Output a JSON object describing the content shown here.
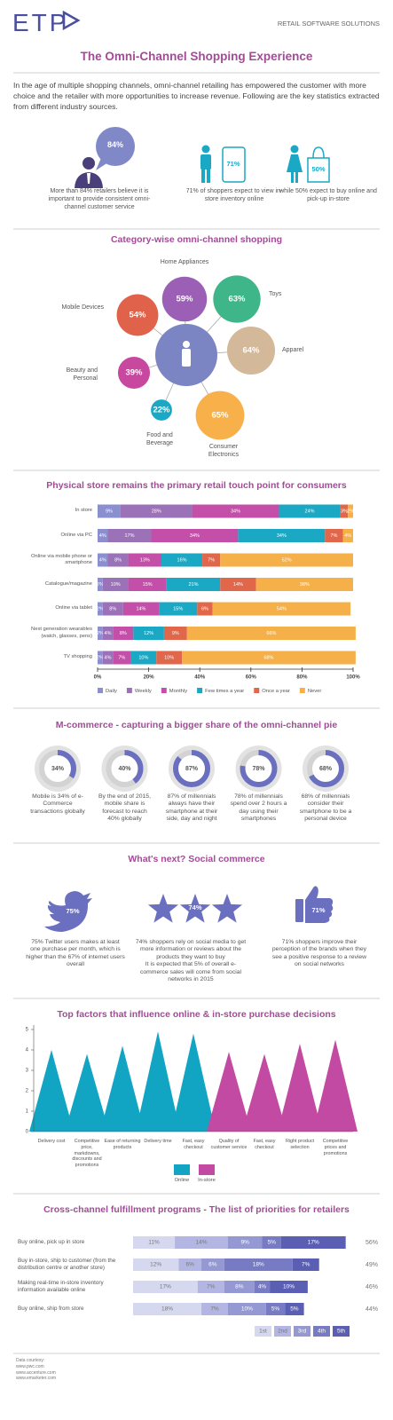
{
  "header": {
    "logo": "ETP",
    "tagline": "RETAIL SOFTWARE SOLUTIONS"
  },
  "title": "The Omni-Channel Shopping Experience",
  "intro": "In the age of multiple shopping channels, omni-channel retailing has empowered the customer with more choice and the retailer with more opportunities to increase revenue. Following are the key statistics extracted from different industry sources.",
  "stats": [
    {
      "value": "84%",
      "caption": "More than 84% retailers believe it is important to provide consistent omni-channel customer service"
    },
    {
      "value": "71%",
      "caption": "71% of shoppers expect to view in-store inventory online"
    },
    {
      "value": "50%",
      "caption": "while 50% expect to buy online and pick-up in-store"
    }
  ],
  "social": {
    "title": "What's next? Social commerce",
    "items": [
      {
        "value": "75%",
        "caption": "75% Twitter users makes at least one purchase per month, which is higher than the 67% of internet users overall"
      },
      {
        "value": "74%",
        "caption": "74% shoppers rely on social media to get more information or reviews about the products they want to buy\nIt is expected that 5% of overall e-commerce sales will come from social networks in 2015"
      },
      {
        "value": "71%",
        "caption": "71% shoppers improve their perception of the brands when they see a positive response to a review on social networks"
      }
    ]
  },
  "footer": {
    "label": "Data courtesy:",
    "sources": [
      "www.pwc.com",
      "www.accenture.com",
      "www.emarketer.com"
    ]
  },
  "chart_data": [
    {
      "type": "bubble",
      "title": "Category-wise omni-channel shopping",
      "categories": [
        "Home Appliances",
        "Toys",
        "Apparel",
        "Consumer Electronics",
        "Food and Beverage",
        "Beauty and Personal",
        "Mobile Devices"
      ],
      "values": [
        59,
        63,
        64,
        65,
        22,
        39,
        54
      ],
      "value_labels": [
        "59%",
        "63%",
        "64%",
        "65%",
        "22%",
        "39%",
        "54%"
      ],
      "colors": [
        "#9b5fb5",
        "#3fb58a",
        "#d4b89a",
        "#f7b04a",
        "#1aa8c4",
        "#c8479f",
        "#e0624a"
      ],
      "center_color": "#7b85c4"
    },
    {
      "type": "stacked_bar",
      "title": "Physical store remains the primary retail touch point for consumers",
      "categories": [
        "In store",
        "Online via PC",
        "Online via mobile phone or smartphone",
        "Catalogue/magazine",
        "Online via tablet",
        "Next generation wearables (watch, glasses, pens)",
        "TV shopping"
      ],
      "series": [
        {
          "name": "Daily",
          "color": "#8b8fd0",
          "values": [
            9,
            4,
            4,
            2,
            2,
            2,
            2
          ],
          "value_labels": [
            "9%",
            "4%",
            "4%",
            "2%",
            "2%",
            "2%",
            "2%"
          ]
        },
        {
          "name": "Weekly",
          "color": "#9b72b8",
          "values": [
            28,
            17,
            8,
            10,
            8,
            4,
            4
          ],
          "value_labels": [
            "28%",
            "17%",
            "8%",
            "10%",
            "8%",
            "4%",
            "4%"
          ]
        },
        {
          "name": "Monthly",
          "color": "#c44fa8",
          "values": [
            34,
            34,
            13,
            15,
            14,
            8,
            7
          ],
          "value_labels": [
            "34%",
            "34%",
            "13%",
            "15%",
            "14%",
            "8%",
            "7%"
          ]
        },
        {
          "name": "Few times a year",
          "color": "#1aa8c4",
          "values": [
            24,
            34,
            16,
            21,
            15,
            12,
            10
          ],
          "value_labels": [
            "24%",
            "34%",
            "16%",
            "21%",
            "15%",
            "12%",
            "10%"
          ]
        },
        {
          "name": "Once a year",
          "color": "#e0674a",
          "values": [
            3,
            7,
            7,
            14,
            6,
            9,
            10
          ],
          "value_labels": [
            "3%",
            "7%",
            "7%",
            "14%",
            "6%",
            "9%",
            "10%"
          ]
        },
        {
          "name": "Never",
          "color": "#f5b04a",
          "values": [
            2,
            4,
            52,
            38,
            54,
            66,
            68
          ],
          "value_labels": [
            "2%",
            "4%",
            "52%",
            "38%",
            "54%",
            "66%",
            "68%"
          ]
        }
      ],
      "xlim": [
        0,
        100
      ],
      "xticks": [
        {
          "value": 0,
          "label": "0%"
        },
        {
          "value": 20,
          "label": "20%"
        },
        {
          "value": 40,
          "label": "40%"
        },
        {
          "value": 60,
          "label": "60%"
        },
        {
          "value": 80,
          "label": "80%"
        },
        {
          "value": 100,
          "label": "100%"
        }
      ]
    },
    {
      "type": "donut",
      "title": "M-commerce - capturing a bigger share of the omni-channel pie",
      "values": [
        34,
        40,
        87,
        78,
        68
      ],
      "value_labels": [
        "34%",
        "40%",
        "87%",
        "78%",
        "68%"
      ],
      "color": "#6a6fc0",
      "captions": [
        "Mobile is 34% of e-Commerce transactions globally",
        "By the end of 2015, mobile share is forecast to reach 40% globally",
        "87% of millennials always have their smartphone at their side, day and night",
        "78% of millennials spend over 2 hours a day using their smartphones",
        "68% of millennials consider their smartphone to be a personal device"
      ]
    },
    {
      "type": "triangle",
      "title": "Top factors that influence online & in-store purchase decisions",
      "categories": [
        "Delivery cost",
        "Competitive price, markdowns, discounts and promotions",
        "Ease of returning products",
        "Delivery time",
        "Fast, easy checkout",
        "Quality of customer service",
        "Fast, easy checkout",
        "Right product selection",
        "Competitive prices and promotions"
      ],
      "series": [
        {
          "name": "Online",
          "color": "#12a5c3",
          "values": [
            4.0,
            3.8,
            4.2,
            4.9,
            4.8,
            null,
            null,
            null,
            null
          ]
        },
        {
          "name": "In-store",
          "color": "#c34aa2",
          "values": [
            null,
            null,
            null,
            null,
            null,
            3.9,
            3.8,
            4.3,
            4.5
          ]
        }
      ],
      "ylim": [
        0,
        5
      ],
      "yticks": [
        0,
        1,
        2,
        3,
        4,
        5
      ]
    },
    {
      "type": "stacked_bar_h",
      "title": "Cross-channel fulfillment programs - The list of priorities for retailers",
      "categories": [
        "Buy online, pick up in store",
        "Buy in-store, ship to customer (from the distribution centre or another store)",
        "Making real-time in-store inventory information available online",
        "Buy online, ship from store"
      ],
      "series": [
        {
          "name": "1st",
          "color": "#d6d8f0",
          "values": [
            11,
            12,
            17,
            18
          ],
          "value_labels": [
            "11%",
            "12%",
            "17%",
            "18%"
          ]
        },
        {
          "name": "2nd",
          "color": "#b3b6e2",
          "values": [
            14,
            6,
            7,
            7
          ],
          "value_labels": [
            "14%",
            "6%",
            "7%",
            "7%"
          ]
        },
        {
          "name": "3rd",
          "color": "#9498d3",
          "values": [
            9,
            6,
            8,
            10
          ],
          "value_labels": [
            "9%",
            "6%",
            "8%",
            "10%"
          ]
        },
        {
          "name": "4th",
          "color": "#767bc4",
          "values": [
            5,
            18,
            4,
            5
          ],
          "value_labels": [
            "5%",
            "18%",
            "4%",
            "5%"
          ]
        },
        {
          "name": "5th",
          "color": "#5a5fb4",
          "values": [
            17,
            7,
            10,
            5
          ],
          "value_labels": [
            "17%",
            "7%",
            "10%",
            "5%"
          ]
        }
      ],
      "totals": [
        "56%",
        "49%",
        "46%",
        "44%"
      ]
    }
  ]
}
